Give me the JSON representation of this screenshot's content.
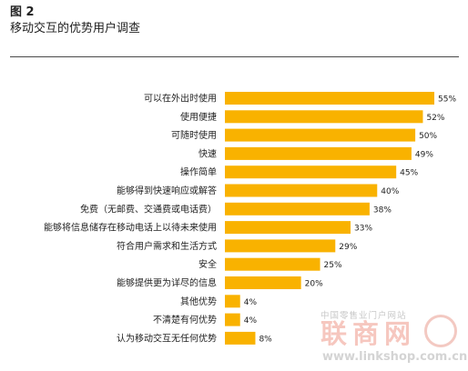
{
  "header": {
    "figure_label": "图 2",
    "title": "移动交互的优势用户调查"
  },
  "chart_data": {
    "type": "bar",
    "orientation": "horizontal",
    "categories": [
      "可以在外出时使用",
      "使用便捷",
      "可随时使用",
      "快速",
      "操作简单",
      "能够得到快速响应或解答",
      "免费（无邮费、交通费或电话费）",
      "能够将信息储存在移动电话上以待未来使用",
      "符合用户需求和生活方式",
      "安全",
      "能够提供更为详尽的信息",
      "其他优势",
      "不清楚有何优势",
      "认为移动交互无任何优势"
    ],
    "values": [
      55,
      52,
      50,
      49,
      45,
      40,
      38,
      33,
      29,
      25,
      20,
      4,
      4,
      8
    ],
    "value_labels": [
      "55%",
      "52%",
      "50%",
      "49%",
      "45%",
      "40%",
      "38%",
      "33%",
      "29%",
      "25%",
      "20%",
      "4%",
      "4%",
      "8%"
    ],
    "bar_color": "#f9b200",
    "xlim": [
      0,
      55
    ],
    "grid": false,
    "legend": false
  },
  "watermark": {
    "top_text": "中国零售业门户网站",
    "brand": "联商网",
    "url": "www.linkshop.com.cn"
  }
}
